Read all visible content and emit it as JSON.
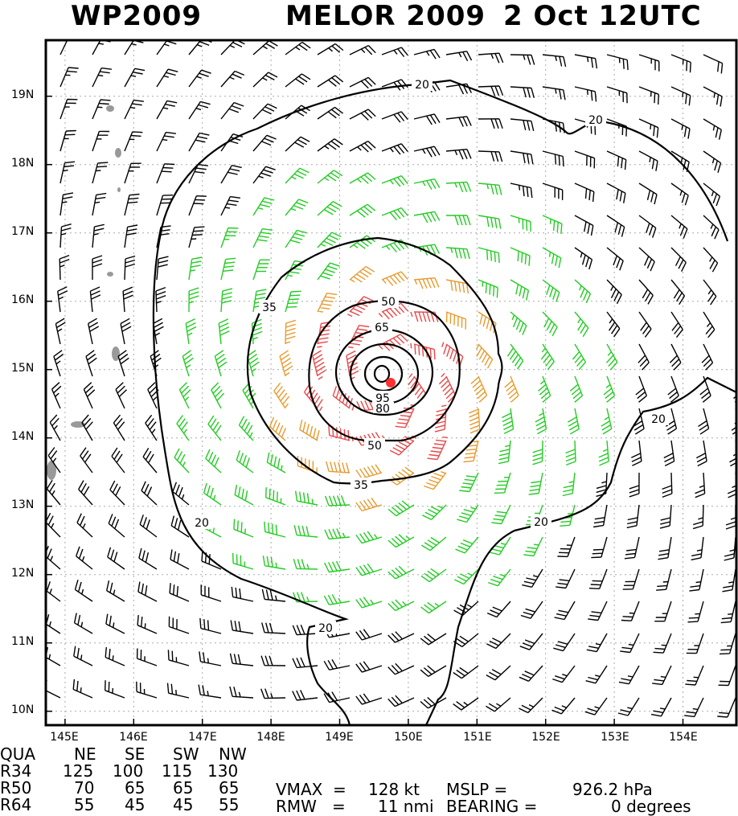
{
  "header": {
    "basin_id": "WP2009",
    "storm_title": "MELOR 2009",
    "valid_time": "2 Oct 12UTC"
  },
  "map": {
    "lat_labels": [
      "19N",
      "18N",
      "17N",
      "16N",
      "15N",
      "14N",
      "13N",
      "12N",
      "11N",
      "10N"
    ],
    "lon_labels": [
      "145E",
      "146E",
      "147E",
      "148E",
      "149E",
      "150E",
      "151E",
      "152E",
      "153E",
      "154E"
    ],
    "contour_labels": [
      "20",
      "20",
      "20",
      "20",
      "20",
      "35",
      "35",
      "50",
      "50",
      "65",
      "80",
      "95"
    ],
    "storm_center": {
      "lat": 14.8,
      "lon": 149.7
    },
    "colors": {
      "weak_barb": "#000000",
      "tropical_storm_barb": "#22cc22",
      "storm_barb": "#e89a2c",
      "hurricane_barb": "#e84848",
      "center_marker": "#ff3030",
      "land": "#999999"
    }
  },
  "wind_radii": {
    "headers": [
      "QUA",
      "NE",
      "SE",
      "SW",
      "NW"
    ],
    "rows": [
      {
        "label": "R34",
        "values": [
          "125",
          "100",
          "115",
          "130"
        ]
      },
      {
        "label": "R50",
        "values": [
          "70",
          "65",
          "65",
          "65"
        ]
      },
      {
        "label": "R64",
        "values": [
          "55",
          "45",
          "45",
          "55"
        ]
      }
    ]
  },
  "stats": {
    "vmax_label": "VMAX  =",
    "vmax_value": "128 kt",
    "mslp_label": "MSLP =",
    "mslp_value": "926.2 hPa",
    "rmw_label": "RMW   =",
    "rmw_value": "11 nmi",
    "bearing_label": "BEARING =",
    "bearing_value": "0 degrees"
  }
}
